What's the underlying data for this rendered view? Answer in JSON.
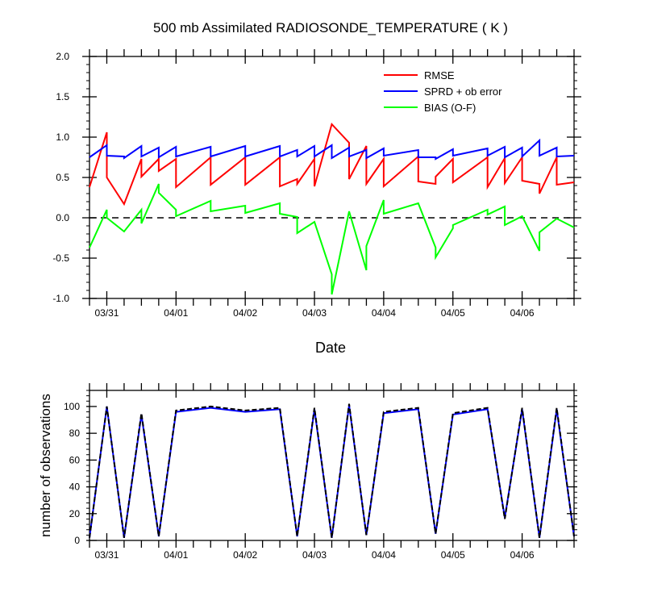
{
  "chart_data": [
    {
      "type": "line",
      "title": "500 mb Assimilated RADIOSONDE_TEMPERATURE ( K )",
      "xlabel": "Date",
      "ylabel": "",
      "xlim": [
        0,
        7
      ],
      "ylim": [
        -1.0,
        2.0
      ],
      "x_tick_labels": [
        "03/31",
        "04/01",
        "04/02",
        "04/03",
        "04/04",
        "04/05",
        "04/06"
      ],
      "x_tick_positions": [
        0.25,
        1.25,
        2.25,
        3.25,
        4.25,
        5.25,
        6.25
      ],
      "y_ticks": [
        -1.0,
        -0.5,
        0.0,
        0.5,
        1.0,
        1.5,
        2.0
      ],
      "y_tick_labels": [
        "-1.0",
        "-0.5",
        "0.0",
        "0.5",
        "1.0",
        "1.5",
        "2.0"
      ],
      "zero_line": true,
      "legend_position": "top-right",
      "series": [
        {
          "name": "RMSE",
          "color": "#ff0000",
          "points": [
            [
              0.0,
              0.38
            ],
            [
              0.25,
              1.06
            ],
            [
              0.25,
              0.5
            ],
            [
              0.5,
              0.17
            ],
            [
              0.75,
              0.73
            ],
            [
              0.75,
              0.51
            ],
            [
              1.0,
              0.73
            ],
            [
              1.0,
              0.58
            ],
            [
              1.25,
              0.73
            ],
            [
              1.25,
              0.38
            ],
            [
              1.75,
              0.75
            ],
            [
              1.75,
              0.41
            ],
            [
              2.25,
              0.75
            ],
            [
              2.25,
              0.41
            ],
            [
              2.75,
              0.75
            ],
            [
              2.75,
              0.39
            ],
            [
              3.0,
              0.48
            ],
            [
              3.0,
              0.42
            ],
            [
              3.25,
              0.73
            ],
            [
              3.25,
              0.39
            ],
            [
              3.5,
              1.16
            ],
            [
              3.75,
              0.93
            ],
            [
              3.75,
              0.48
            ],
            [
              4.0,
              0.89
            ],
            [
              4.0,
              0.42
            ],
            [
              4.25,
              0.73
            ],
            [
              4.25,
              0.39
            ],
            [
              4.75,
              0.76
            ],
            [
              4.75,
              0.45
            ],
            [
              5.0,
              0.42
            ],
            [
              5.0,
              0.51
            ],
            [
              5.25,
              0.73
            ],
            [
              5.25,
              0.44
            ],
            [
              5.75,
              0.75
            ],
            [
              5.75,
              0.38
            ],
            [
              6.0,
              0.74
            ],
            [
              6.0,
              0.43
            ],
            [
              6.25,
              0.75
            ],
            [
              6.25,
              0.46
            ],
            [
              6.5,
              0.42
            ],
            [
              6.5,
              0.3
            ],
            [
              6.75,
              0.75
            ],
            [
              6.75,
              0.41
            ],
            [
              7.0,
              0.44
            ]
          ]
        },
        {
          "name": "SPRD + ob error",
          "color": "#0000ff",
          "points": [
            [
              0.0,
              0.75
            ],
            [
              0.25,
              0.9
            ],
            [
              0.25,
              0.77
            ],
            [
              0.5,
              0.76
            ],
            [
              0.5,
              0.74
            ],
            [
              0.75,
              0.89
            ],
            [
              0.75,
              0.76
            ],
            [
              1.0,
              0.87
            ],
            [
              1.0,
              0.75
            ],
            [
              1.25,
              0.88
            ],
            [
              1.25,
              0.76
            ],
            [
              1.75,
              0.88
            ],
            [
              1.75,
              0.76
            ],
            [
              2.25,
              0.89
            ],
            [
              2.25,
              0.76
            ],
            [
              2.75,
              0.89
            ],
            [
              2.75,
              0.76
            ],
            [
              3.0,
              0.84
            ],
            [
              3.0,
              0.76
            ],
            [
              3.25,
              0.89
            ],
            [
              3.25,
              0.76
            ],
            [
              3.5,
              0.9
            ],
            [
              3.5,
              0.74
            ],
            [
              3.75,
              0.87
            ],
            [
              3.75,
              0.76
            ],
            [
              4.0,
              0.84
            ],
            [
              4.0,
              0.74
            ],
            [
              4.25,
              0.86
            ],
            [
              4.25,
              0.77
            ],
            [
              4.75,
              0.84
            ],
            [
              4.75,
              0.75
            ],
            [
              5.0,
              0.75
            ],
            [
              5.0,
              0.73
            ],
            [
              5.25,
              0.85
            ],
            [
              5.25,
              0.77
            ],
            [
              5.75,
              0.86
            ],
            [
              5.75,
              0.77
            ],
            [
              6.0,
              0.88
            ],
            [
              6.0,
              0.75
            ],
            [
              6.25,
              0.87
            ],
            [
              6.25,
              0.76
            ],
            [
              6.5,
              0.96
            ],
            [
              6.5,
              0.77
            ],
            [
              6.75,
              0.87
            ],
            [
              6.75,
              0.76
            ],
            [
              7.0,
              0.77
            ]
          ]
        },
        {
          "name": "BIAS (O-F)",
          "color": "#00ff00",
          "points": [
            [
              0.0,
              -0.37
            ],
            [
              0.25,
              0.1
            ],
            [
              0.25,
              0.0
            ],
            [
              0.5,
              -0.17
            ],
            [
              0.75,
              0.1
            ],
            [
              0.75,
              -0.07
            ],
            [
              1.0,
              0.42
            ],
            [
              1.0,
              0.31
            ],
            [
              1.25,
              0.1
            ],
            [
              1.25,
              0.02
            ],
            [
              1.75,
              0.21
            ],
            [
              1.75,
              0.08
            ],
            [
              2.25,
              0.15
            ],
            [
              2.25,
              0.06
            ],
            [
              2.75,
              0.18
            ],
            [
              2.75,
              0.05
            ],
            [
              3.0,
              0.01
            ],
            [
              3.0,
              -0.19
            ],
            [
              3.25,
              -0.05
            ],
            [
              3.5,
              -0.7
            ],
            [
              3.5,
              -0.95
            ],
            [
              3.75,
              0.08
            ],
            [
              4.0,
              -0.65
            ],
            [
              4.0,
              -0.35
            ],
            [
              4.25,
              0.22
            ],
            [
              4.25,
              0.05
            ],
            [
              4.75,
              0.18
            ],
            [
              5.0,
              -0.37
            ],
            [
              5.0,
              -0.49
            ],
            [
              5.25,
              -0.13
            ],
            [
              5.25,
              -0.09
            ],
            [
              5.75,
              0.1
            ],
            [
              5.75,
              0.04
            ],
            [
              6.0,
              0.14
            ],
            [
              6.0,
              -0.09
            ],
            [
              6.25,
              0.02
            ],
            [
              6.5,
              -0.41
            ],
            [
              6.5,
              -0.18
            ],
            [
              6.75,
              -0.01
            ],
            [
              7.0,
              -0.12
            ]
          ]
        }
      ]
    },
    {
      "type": "line",
      "title": "",
      "xlabel": "",
      "ylabel": "number of observations",
      "xlim": [
        0,
        7
      ],
      "ylim": [
        0,
        112
      ],
      "x_tick_labels": [
        "03/31",
        "04/01",
        "04/02",
        "04/03",
        "04/04",
        "04/05",
        "04/06"
      ],
      "x_tick_positions": [
        0.25,
        1.25,
        2.25,
        3.25,
        4.25,
        5.25,
        6.25
      ],
      "y_ticks": [
        0,
        20,
        40,
        60,
        80,
        100
      ],
      "y_tick_labels": [
        "0",
        "20",
        "40",
        "60",
        "80",
        "100"
      ],
      "series": [
        {
          "color": "#0000ff",
          "dashed": false,
          "points": [
            [
              0.0,
              2
            ],
            [
              0.25,
              100
            ],
            [
              0.5,
              2
            ],
            [
              0.75,
              94
            ],
            [
              1.0,
              3
            ],
            [
              1.25,
              96
            ],
            [
              1.75,
              99
            ],
            [
              2.25,
              96
            ],
            [
              2.75,
              98
            ],
            [
              3.0,
              3
            ],
            [
              3.25,
              98
            ],
            [
              3.5,
              2
            ],
            [
              3.75,
              101
            ],
            [
              4.0,
              4
            ],
            [
              4.25,
              95
            ],
            [
              4.75,
              98
            ],
            [
              5.0,
              5
            ],
            [
              5.25,
              94
            ],
            [
              5.75,
              98
            ],
            [
              6.0,
              17
            ],
            [
              6.25,
              98
            ],
            [
              6.5,
              2
            ],
            [
              6.75,
              98
            ],
            [
              7.0,
              3
            ]
          ]
        },
        {
          "color": "#000000",
          "dashed": true,
          "points": [
            [
              0.0,
              2
            ],
            [
              0.25,
              100
            ],
            [
              0.5,
              2
            ],
            [
              0.75,
              95
            ],
            [
              1.0,
              3
            ],
            [
              1.25,
              97
            ],
            [
              1.75,
              100
            ],
            [
              2.25,
              97
            ],
            [
              2.75,
              99
            ],
            [
              3.0,
              3
            ],
            [
              3.25,
              99
            ],
            [
              3.5,
              2
            ],
            [
              3.75,
              102
            ],
            [
              4.0,
              4
            ],
            [
              4.25,
              96
            ],
            [
              4.75,
              99
            ],
            [
              5.0,
              5
            ],
            [
              5.25,
              95
            ],
            [
              5.75,
              99
            ],
            [
              6.0,
              16
            ],
            [
              6.25,
              99
            ],
            [
              6.5,
              2
            ],
            [
              6.75,
              99
            ],
            [
              7.0,
              3
            ]
          ]
        }
      ]
    }
  ]
}
